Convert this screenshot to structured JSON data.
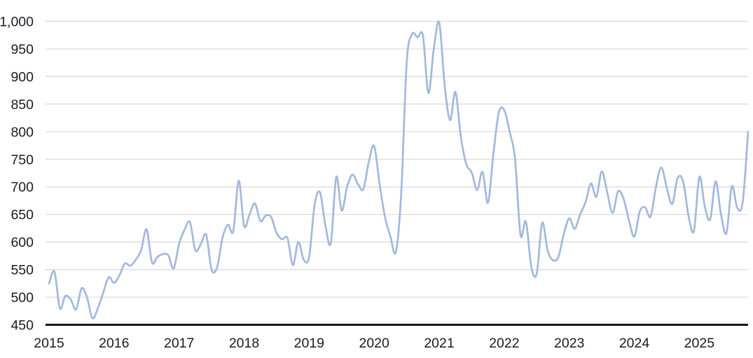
{
  "chart_data": {
    "type": "line",
    "title": "",
    "legend": "none",
    "grid": "horizontal",
    "x_start": "2015-01",
    "x_end": "2025-10",
    "points_per_year": 12,
    "x_tick_labels": [
      "2015",
      "2016",
      "2017",
      "2018",
      "2019",
      "2020",
      "2021",
      "2022",
      "2023",
      "2024",
      "2025"
    ],
    "y_ticks": [
      450,
      500,
      550,
      600,
      650,
      700,
      750,
      800,
      850,
      900,
      950,
      1000
    ],
    "y_tick_labels": [
      "450",
      "500",
      "550",
      "600",
      "650",
      "700",
      "750",
      "800",
      "850",
      "900",
      "950",
      "1,000"
    ],
    "ylim": [
      450,
      1000
    ],
    "values": [
      525,
      546,
      480,
      502,
      496,
      478,
      516,
      500,
      462,
      480,
      508,
      536,
      526,
      540,
      561,
      557,
      568,
      585,
      623,
      563,
      573,
      578,
      576,
      552,
      597,
      622,
      636,
      585,
      596,
      613,
      550,
      554,
      607,
      631,
      620,
      711,
      629,
      650,
      670,
      638,
      648,
      645,
      616,
      605,
      607,
      558,
      600,
      568,
      573,
      667,
      690,
      630,
      598,
      718,
      657,
      700,
      722,
      705,
      696,
      745,
      774,
      705,
      645,
      610,
      582,
      690,
      925,
      977,
      971,
      974,
      870,
      950,
      998,
      885,
      821,
      872,
      790,
      741,
      726,
      694,
      727,
      671,
      760,
      835,
      839,
      800,
      750,
      613,
      637,
      555,
      543,
      635,
      585,
      567,
      573,
      615,
      643,
      624,
      650,
      672,
      706,
      682,
      728,
      690,
      653,
      692,
      679,
      640,
      610,
      655,
      663,
      646,
      700,
      735,
      698,
      669,
      716,
      710,
      648,
      620,
      718,
      665,
      641,
      710,
      650,
      616,
      701,
      662,
      672,
      800
    ],
    "colors": {
      "line": "#a1b9dd",
      "gridline": "#d9d9d9",
      "axis_line": "#16161f",
      "label": "#1b1b26"
    }
  }
}
